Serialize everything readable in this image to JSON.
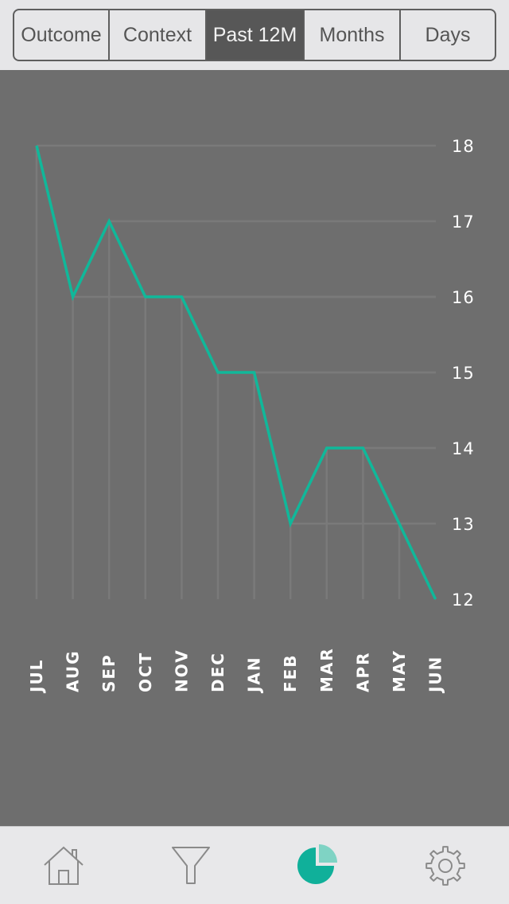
{
  "segments": [
    {
      "label": "Outcome",
      "active": false
    },
    {
      "label": "Context",
      "active": false
    },
    {
      "label": "Past 12M",
      "active": true
    },
    {
      "label": "Months",
      "active": false
    },
    {
      "label": "Days",
      "active": false
    }
  ],
  "colors": {
    "line": "#10b89a",
    "chart_bg": "#6e6e6e",
    "grid": "#7a7a7a",
    "active_tab": "#10b09a",
    "active_tab_light": "#7fd3c4",
    "inactive_icon": "#8a8a8a"
  },
  "chart_data": {
    "type": "line",
    "categories": [
      "JUL",
      "AUG",
      "SEP",
      "OCT",
      "NOV",
      "DEC",
      "JAN",
      "FEB",
      "MAR",
      "APR",
      "MAY",
      "JUN"
    ],
    "values": [
      18,
      16,
      17,
      16,
      16,
      15,
      15,
      13,
      14,
      14,
      13,
      12
    ],
    "yticks": [
      18,
      17,
      16,
      15,
      14,
      13,
      12
    ],
    "ylim": [
      12,
      18
    ],
    "yaxis_side": "right",
    "xlabel_orientation": "vertical",
    "grid": true
  },
  "tabbar": {
    "tabs": [
      {
        "icon": "home-icon",
        "active": false
      },
      {
        "icon": "filter-icon",
        "active": false
      },
      {
        "icon": "pie-chart-icon",
        "active": true
      },
      {
        "icon": "gear-icon",
        "active": false
      }
    ]
  }
}
